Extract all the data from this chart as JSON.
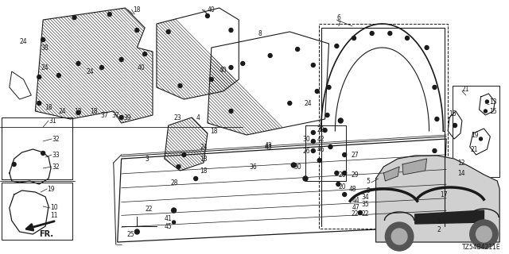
{
  "background_color": "#ffffff",
  "line_color": "#1a1a1a",
  "diagram_code": "TZ54B4211E",
  "fig_width": 6.4,
  "fig_height": 3.2,
  "dpi": 100
}
